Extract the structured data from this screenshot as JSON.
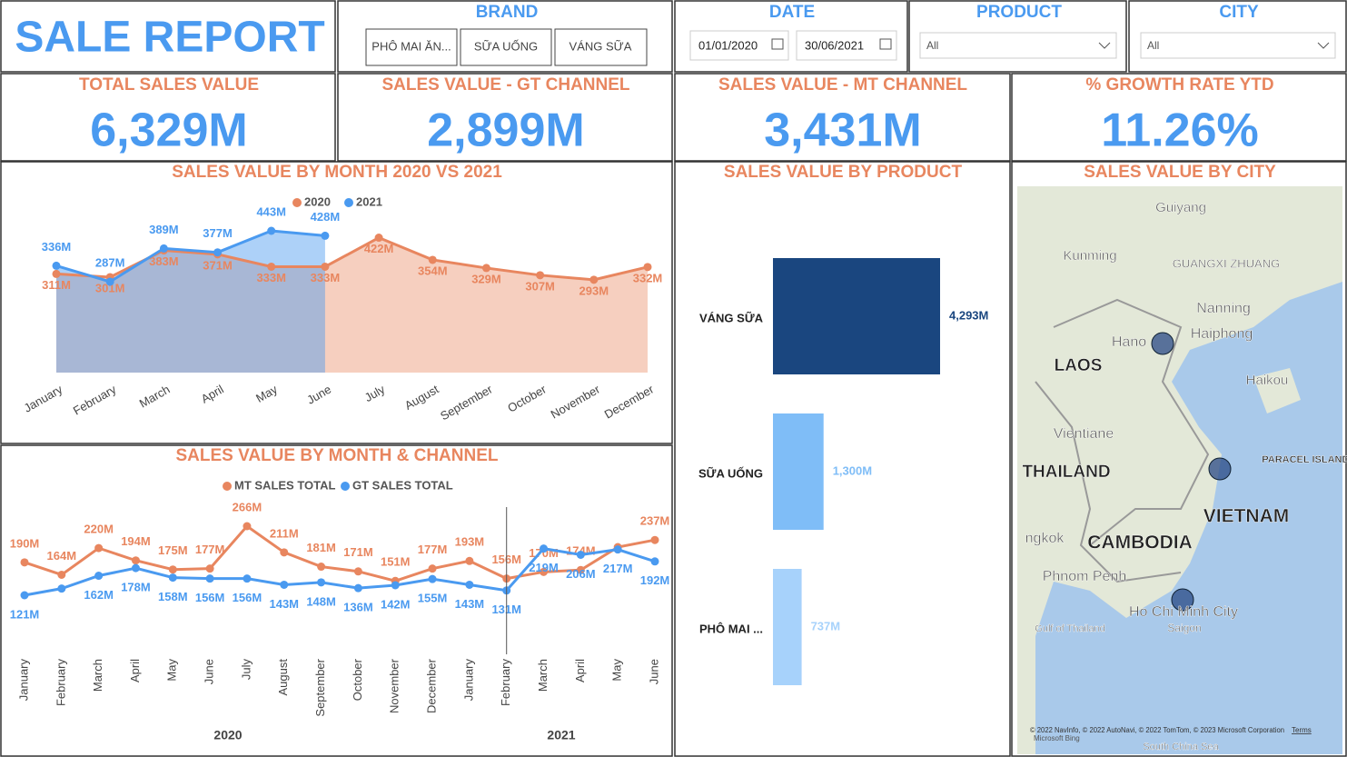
{
  "header": {
    "title": "SALE REPORT"
  },
  "slicers": {
    "brand": {
      "label": "BRAND",
      "options": [
        "PHÔ MAI ĂN...",
        "SỮA UỐNG",
        "VÁNG SỮA"
      ]
    },
    "date": {
      "label": "DATE",
      "from": "01/01/2020",
      "to": "30/06/2021"
    },
    "product": {
      "label": "PRODUCT",
      "value": "All"
    },
    "city": {
      "label": "CITY",
      "value": "All"
    }
  },
  "kpis": [
    {
      "label": "TOTAL SALES VALUE",
      "value": "6,329M"
    },
    {
      "label": "SALES VALUE - GT CHANNEL",
      "value": "2,899M"
    },
    {
      "label": "SALES VALUE - MT CHANNEL",
      "value": "3,431M"
    },
    {
      "label": "% GROWTH RATE YTD",
      "value": "11.26%"
    }
  ],
  "chart_data": [
    {
      "type": "area",
      "title": "SALES VALUE BY MONTH 2020 VS 2021",
      "categories": [
        "January",
        "February",
        "March",
        "April",
        "May",
        "June",
        "July",
        "August",
        "September",
        "October",
        "November",
        "December"
      ],
      "series": [
        {
          "name": "2020",
          "color": "#e8865f",
          "values": [
            311,
            301,
            383,
            371,
            333,
            333,
            422,
            354,
            329,
            307,
            293,
            332
          ],
          "value_labels": [
            "311M",
            "301M",
            "383M",
            "371M",
            "333M",
            "333M",
            "422M",
            "354M",
            "329M",
            "307M",
            "293M",
            "332M"
          ]
        },
        {
          "name": "2021",
          "color": "#4a9af0",
          "values": [
            336,
            287,
            389,
            377,
            443,
            428,
            null,
            null,
            null,
            null,
            null,
            null
          ],
          "value_labels": [
            "336M",
            "287M",
            "389M",
            "377M",
            "443M",
            "428M",
            null,
            null,
            null,
            null,
            null,
            null
          ]
        }
      ]
    },
    {
      "type": "line",
      "title": "SALES VALUE BY MONTH & CHANNEL",
      "categories": [
        "January",
        "February",
        "March",
        "April",
        "May",
        "June",
        "July",
        "August",
        "September",
        "October",
        "November",
        "December",
        "January",
        "February",
        "March",
        "April",
        "May",
        "June"
      ],
      "groups": [
        "2020",
        "2021"
      ],
      "series": [
        {
          "name": "MT SALES TOTAL",
          "color": "#e8865f",
          "values": [
            190,
            164,
            220,
            194,
            175,
            177,
            266,
            211,
            181,
            171,
            151,
            177,
            193,
            156,
            170,
            174,
            222,
            237
          ],
          "value_labels": [
            "190M",
            "164M",
            "220M",
            "194M",
            "175M",
            "177M",
            "266M",
            "211M",
            "181M",
            "171M",
            "151M",
            "177M",
            "193M",
            "156M",
            "170M",
            "174M",
            null,
            "237M"
          ]
        },
        {
          "name": "GT SALES TOTAL",
          "color": "#4a9af0",
          "values": [
            121,
            135,
            162,
            178,
            158,
            156,
            156,
            143,
            148,
            136,
            142,
            155,
            143,
            131,
            219,
            206,
            217,
            192
          ],
          "value_labels": [
            "121M",
            null,
            "162M",
            "178M",
            "158M",
            "156M",
            "156M",
            "143M",
            "148M",
            "136M",
            "142M",
            "155M",
            "143M",
            "131M",
            "219M",
            "206M",
            "217M",
            "192M"
          ]
        }
      ]
    },
    {
      "type": "bar",
      "orientation": "horizontal",
      "title": "SALES VALUE BY PRODUCT",
      "categories": [
        "VÁNG SỮA",
        "SỮA UỐNG",
        "PHÔ MAI ..."
      ],
      "values": [
        4293,
        1300,
        737
      ],
      "value_labels": [
        "4,293M",
        "1,300M",
        "737M"
      ],
      "colors": [
        "#1a467f",
        "#7fbdf7",
        "#a7d2fb"
      ]
    }
  ],
  "map": {
    "title": "SALES VALUE BY CITY",
    "places": [
      "Guiyang",
      "Kunming",
      "GUANGXI ZHUANG",
      "Nanning",
      "Hano",
      "Haiphong",
      "LAOS",
      "Haikou",
      "Vientiane",
      "THAILAND",
      "PARACEL ISLANDS",
      "VIETNAM",
      "ngkok",
      "CAMBODIA",
      "Phnom Penh",
      "Gulf of Thailand",
      "Ho Chi Minh City",
      "Saigon",
      "South China Sea"
    ],
    "attribution": "© 2022 NavInfo, © 2022 AutoNavi, © 2022 TomTom, © 2023 Microsoft Corporation",
    "terms": "Terms",
    "provider": "Microsoft Bing"
  }
}
